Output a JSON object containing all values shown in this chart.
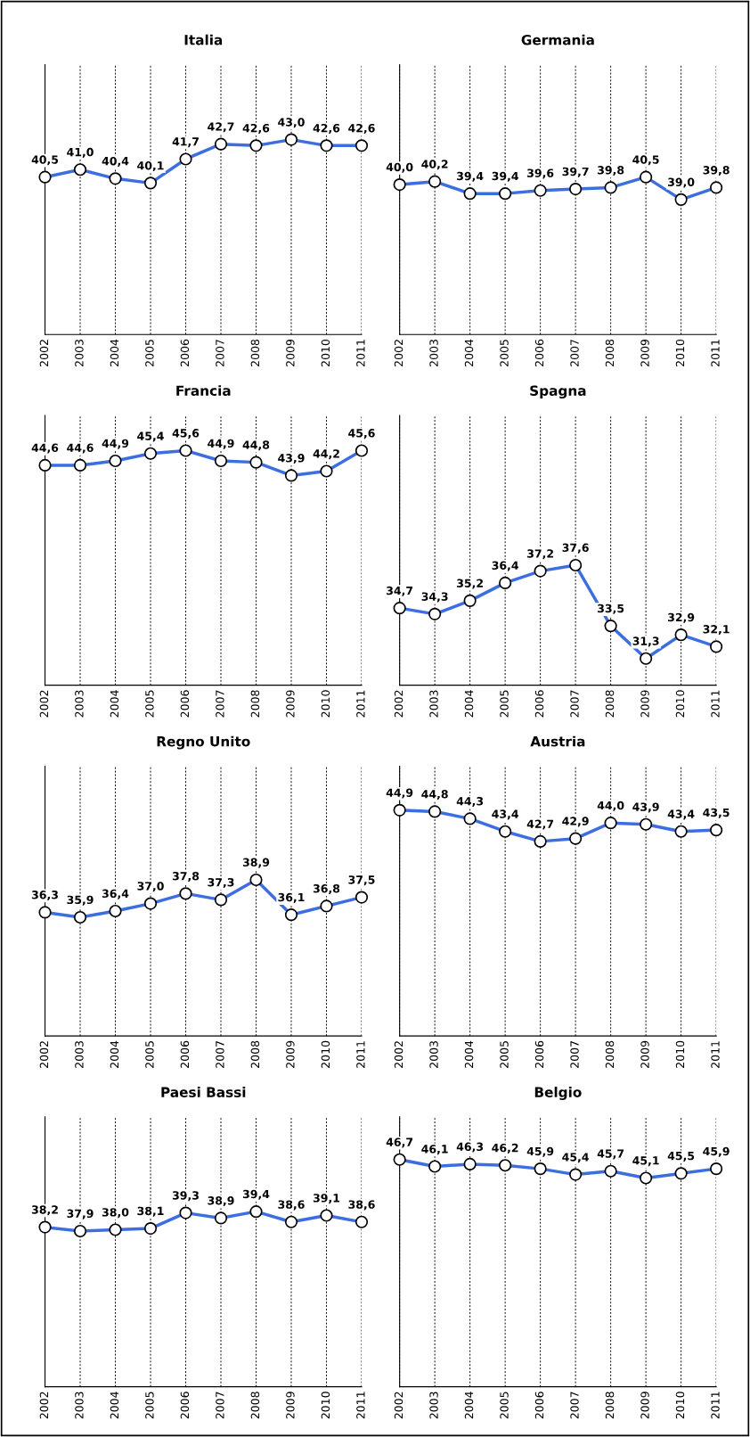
{
  "chart_data": [
    {
      "type": "line",
      "title": "Italia",
      "categories": [
        "2002",
        "2003",
        "2004",
        "2005",
        "2006",
        "2007",
        "2008",
        "2009",
        "2010",
        "2011"
      ],
      "series": [
        {
          "color": "#3d6ee0",
          "values": [
            40.5,
            41.0,
            40.4,
            40.1,
            41.7,
            42.7,
            42.6,
            43.0,
            42.6,
            42.6
          ],
          "value_labels": [
            "40,5",
            "41,0",
            "40,4",
            "40,1",
            "41,7",
            "42,7",
            "42,6",
            "43,0",
            "42,6",
            "42,6"
          ]
        }
      ],
      "ylim": [
        30,
        48
      ],
      "grid": "x",
      "marker": "circle",
      "tick_labels": "x"
    },
    {
      "type": "line",
      "title": "Germania",
      "categories": [
        "2002",
        "2003",
        "2004",
        "2005",
        "2006",
        "2007",
        "2008",
        "2009",
        "2010",
        "2011"
      ],
      "series": [
        {
          "color": "#3d6ee0",
          "values": [
            40.0,
            40.2,
            39.4,
            39.4,
            39.6,
            39.7,
            39.8,
            40.5,
            39.0,
            39.8
          ],
          "value_labels": [
            "40,0",
            "40,2",
            "39,4",
            "39,4",
            "39,6",
            "39,7",
            "39,8",
            "40,5",
            "39,0",
            "39,8"
          ]
        }
      ],
      "ylim": [
        30,
        48
      ],
      "grid": "x",
      "marker": "circle",
      "tick_labels": "x"
    },
    {
      "type": "line",
      "title": "Francia",
      "categories": [
        "2002",
        "2003",
        "2004",
        "2005",
        "2006",
        "2007",
        "2008",
        "2009",
        "2010",
        "2011"
      ],
      "series": [
        {
          "color": "#3d6ee0",
          "values": [
            44.6,
            44.6,
            44.9,
            45.4,
            45.6,
            44.9,
            44.8,
            43.9,
            44.2,
            45.6
          ],
          "value_labels": [
            "44,6",
            "44,6",
            "44,9",
            "45,4",
            "45,6",
            "44,9",
            "44,8",
            "43,9",
            "44,2",
            "45,6"
          ]
        }
      ],
      "ylim": [
        29.6,
        48
      ],
      "grid": "x",
      "marker": "circle",
      "tick_labels": "x"
    },
    {
      "type": "line",
      "title": "Spagna",
      "categories": [
        "2002",
        "2003",
        "2004",
        "2005",
        "2006",
        "2007",
        "2008",
        "2009",
        "2010",
        "2011"
      ],
      "series": [
        {
          "color": "#3d6ee0",
          "values": [
            34.7,
            34.3,
            35.2,
            36.4,
            37.2,
            37.6,
            33.5,
            31.3,
            32.9,
            32.1
          ],
          "value_labels": [
            "34,7",
            "34,3",
            "35,2",
            "36,4",
            "37,2",
            "37,6",
            "33,5",
            "31,3",
            "32,9",
            "32,1"
          ]
        }
      ],
      "ylim": [
        29.5,
        47.7
      ],
      "grid": "x",
      "marker": "circle",
      "tick_labels": "x"
    },
    {
      "type": "line",
      "title": "Regno Unito",
      "categories": [
        "2002",
        "2003",
        "2004",
        "2005",
        "2006",
        "2007",
        "2008",
        "2009",
        "2010",
        "2011"
      ],
      "series": [
        {
          "color": "#3d6ee0",
          "values": [
            36.3,
            35.9,
            36.4,
            37.0,
            37.8,
            37.3,
            38.9,
            36.1,
            36.8,
            37.5
          ],
          "value_labels": [
            "36,3",
            "35,9",
            "36,4",
            "37,0",
            "37,8",
            "37,3",
            "38,9",
            "36,1",
            "36,8",
            "37,5"
          ]
        }
      ],
      "ylim": [
        26.4,
        48
      ],
      "grid": "x",
      "marker": "circle",
      "tick_labels": "x"
    },
    {
      "type": "line",
      "title": "Austria",
      "categories": [
        "2002",
        "2003",
        "2004",
        "2005",
        "2006",
        "2007",
        "2008",
        "2009",
        "2010",
        "2011"
      ],
      "series": [
        {
          "color": "#3d6ee0",
          "values": [
            44.9,
            44.8,
            44.3,
            43.4,
            42.7,
            42.9,
            44.0,
            43.9,
            43.4,
            43.5
          ],
          "value_labels": [
            "44,9",
            "44,8",
            "44,3",
            "43,4",
            "42,7",
            "42,9",
            "44,0",
            "43,9",
            "43,4",
            "43,5"
          ]
        }
      ],
      "ylim": [
        29,
        48
      ],
      "grid": "x",
      "marker": "circle",
      "tick_labels": "x"
    },
    {
      "type": "line",
      "title": "Paesi Bassi",
      "categories": [
        "2002",
        "2003",
        "2004",
        "2005",
        "2006",
        "2007",
        "2008",
        "2009",
        "2010",
        "2011"
      ],
      "series": [
        {
          "color": "#3d6ee0",
          "values": [
            38.2,
            37.9,
            38.0,
            38.1,
            39.3,
            38.9,
            39.4,
            38.6,
            39.1,
            38.6
          ],
          "value_labels": [
            "38,2",
            "37,9",
            "38,0",
            "38,1",
            "39,3",
            "38,9",
            "39,4",
            "38,6",
            "39,1",
            "38,6"
          ]
        }
      ],
      "ylim": [
        25.9,
        46.7
      ],
      "grid": "x",
      "marker": "circle",
      "tick_labels": "x"
    },
    {
      "type": "line",
      "title": "Belgio",
      "categories": [
        "2002",
        "2003",
        "2004",
        "2005",
        "2006",
        "2007",
        "2008",
        "2009",
        "2010",
        "2011"
      ],
      "series": [
        {
          "color": "#3d6ee0",
          "values": [
            46.7,
            46.1,
            46.3,
            46.2,
            45.9,
            45.4,
            45.7,
            45.1,
            45.5,
            45.9
          ],
          "value_labels": [
            "46,7",
            "46,1",
            "46,3",
            "46,2",
            "45,9",
            "45,4",
            "45,7",
            "45,1",
            "45,5",
            "45,9"
          ]
        }
      ],
      "ylim": [
        27,
        50.4
      ],
      "grid": "x",
      "marker": "circle",
      "tick_labels": "x"
    }
  ]
}
